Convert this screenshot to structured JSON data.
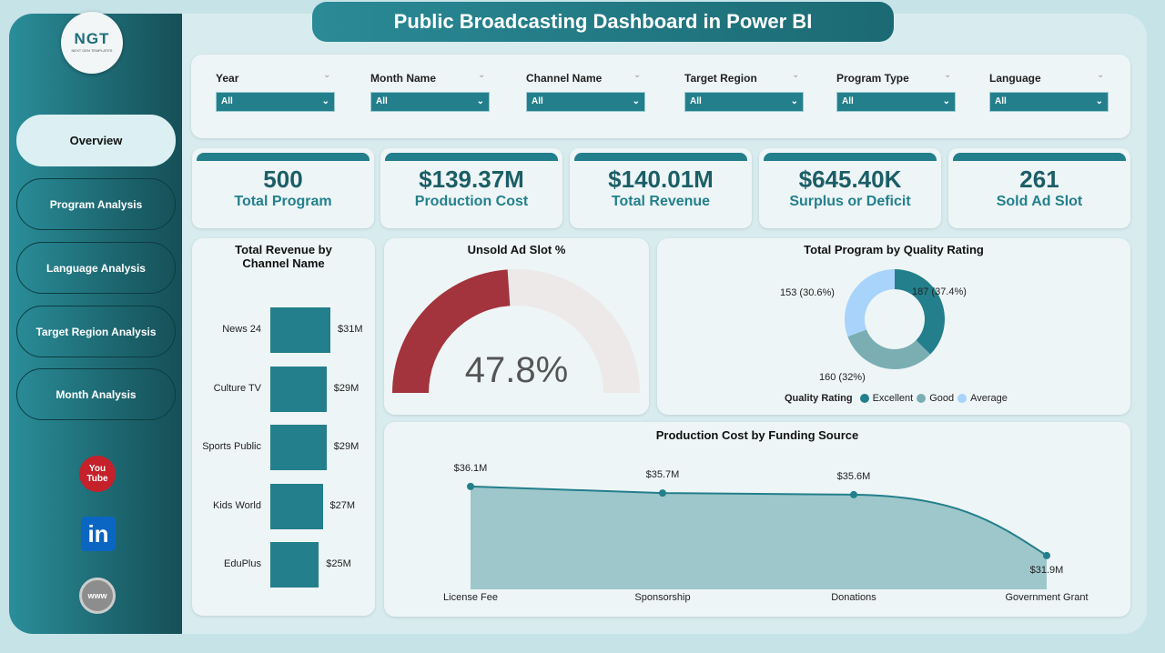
{
  "title": "Public Broadcasting Dashboard in Power BI",
  "logo": {
    "text": "NGT",
    "subtext": "NEXT GEN TEMPLATES"
  },
  "nav": [
    {
      "label": "Overview",
      "active": true
    },
    {
      "label": "Program Analysis"
    },
    {
      "label": "Language Analysis"
    },
    {
      "label": "Target Region Analysis"
    },
    {
      "label": "Month Analysis"
    }
  ],
  "social": [
    {
      "icon": "youtube-icon",
      "label": "You Tube"
    },
    {
      "icon": "linkedin-icon",
      "label": "in"
    },
    {
      "icon": "website-icon",
      "label": "www"
    }
  ],
  "filters": [
    {
      "label": "Year",
      "value": "All"
    },
    {
      "label": "Month Name",
      "value": "All"
    },
    {
      "label": "Channel Name",
      "value": "All"
    },
    {
      "label": "Target Region",
      "value": "All"
    },
    {
      "label": "Program Type",
      "value": "All"
    },
    {
      "label": "Language",
      "value": "All"
    }
  ],
  "kpis": [
    {
      "value": "500",
      "label": "Total Program"
    },
    {
      "value": "$139.37M",
      "label": "Production Cost"
    },
    {
      "value": "$140.01M",
      "label": "Total Revenue"
    },
    {
      "value": "$645.40K",
      "label": "Surplus or Deficit"
    },
    {
      "value": "261",
      "label": "Sold Ad Slot"
    }
  ],
  "colors": {
    "teal": "#237f8b",
    "good": "#7aaeb3",
    "average": "#a8d4fb",
    "gauge": "#a3333d",
    "gauge_track": "#ede9e9"
  },
  "chart_data": [
    {
      "type": "bar",
      "orientation": "horizontal",
      "title": "Total Revenue by Channel Name",
      "categories": [
        "News 24",
        "Culture TV",
        "Sports Public",
        "Kids World",
        "EduPlus"
      ],
      "values": [
        31,
        29,
        29,
        27,
        25
      ],
      "labels": [
        "$31M",
        "$29M",
        "$29M",
        "$27M",
        "$25M"
      ],
      "unit": "$M"
    },
    {
      "type": "gauge",
      "title": "Unsold Ad Slot %",
      "value": 47.8,
      "label": "47.8%",
      "range": [
        0,
        100
      ]
    },
    {
      "type": "pie",
      "donut": true,
      "title": "Total Program by Quality Rating",
      "legend_title": "Quality Rating",
      "legend": "bottom",
      "series": [
        {
          "name": "Excellent",
          "value": 187,
          "label": "187 (37.4%)"
        },
        {
          "name": "Good",
          "value": 160,
          "label": "160 (32%)"
        },
        {
          "name": "Average",
          "value": 153,
          "label": "153 (30.6%)"
        }
      ]
    },
    {
      "type": "area",
      "title": "Production Cost by Funding Source",
      "categories": [
        "License Fee",
        "Sponsorship",
        "Donations",
        "Government Grant"
      ],
      "values": [
        36.1,
        35.7,
        35.6,
        31.9
      ],
      "labels": [
        "$36.1M",
        "$35.7M",
        "$35.6M",
        "$31.9M"
      ],
      "unit": "$M"
    }
  ]
}
